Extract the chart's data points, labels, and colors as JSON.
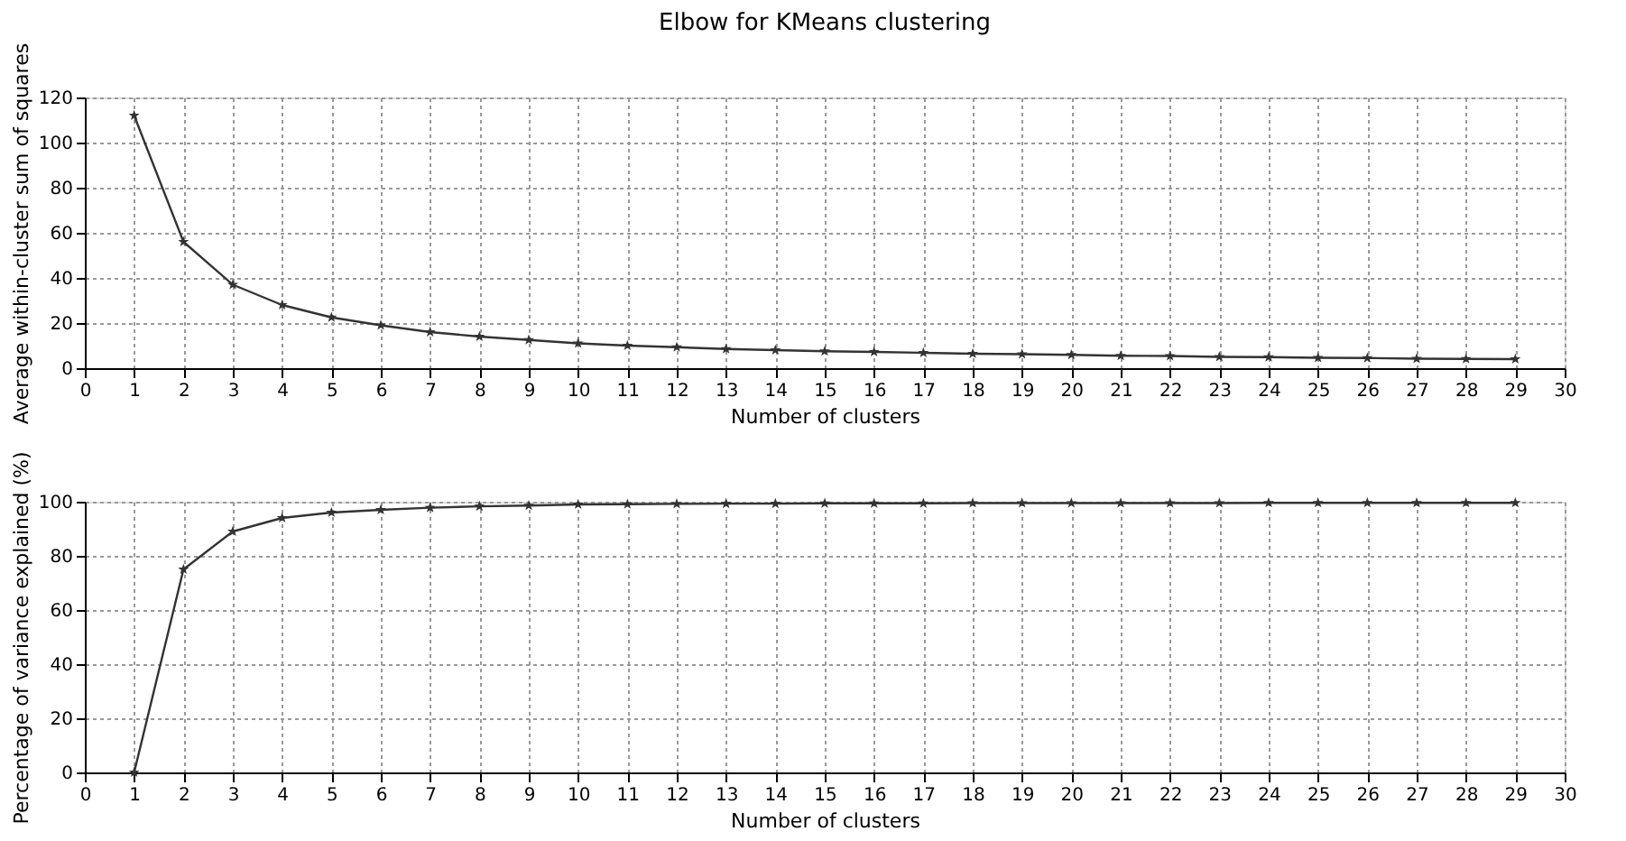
{
  "chart_data": [
    {
      "type": "line",
      "title": "Elbow for KMeans clustering",
      "xlabel": "Number of clusters",
      "ylabel": "Average within-cluster sum of squares",
      "x": [
        1,
        2,
        3,
        4,
        5,
        6,
        7,
        8,
        9,
        10,
        11,
        12,
        13,
        14,
        15,
        16,
        17,
        18,
        19,
        20,
        21,
        22,
        23,
        24,
        25,
        26,
        27,
        28,
        29
      ],
      "series": [
        {
          "color": "#333333",
          "values": [
            112,
            56,
            37,
            28,
            22.5,
            19,
            16,
            14,
            12.5,
            11,
            10,
            9.3,
            8.5,
            8,
            7.5,
            7.2,
            6.8,
            6.4,
            6.2,
            5.9,
            5.5,
            5.4,
            5.0,
            4.9,
            4.6,
            4.5,
            4.2,
            4.1,
            4.0
          ]
        }
      ],
      "xlim": [
        0,
        30
      ],
      "xticks": [
        0,
        1,
        2,
        3,
        4,
        5,
        6,
        7,
        8,
        9,
        10,
        11,
        12,
        13,
        14,
        15,
        16,
        17,
        18,
        19,
        20,
        21,
        22,
        23,
        24,
        25,
        26,
        27,
        28,
        29,
        30
      ],
      "ylim": [
        0,
        120
      ],
      "yticks": [
        0,
        20,
        40,
        60,
        80,
        100,
        120
      ],
      "grid": true,
      "marker": "star",
      "line_style": "solid"
    },
    {
      "type": "line",
      "xlabel": "Number of clusters",
      "ylabel": "Percentage of variance explained (%)",
      "x": [
        1,
        2,
        3,
        4,
        5,
        6,
        7,
        8,
        9,
        10,
        11,
        12,
        13,
        14,
        15,
        16,
        17,
        18,
        19,
        20,
        21,
        22,
        23,
        24,
        25,
        26,
        27,
        28,
        29
      ],
      "series": [
        {
          "color": "#333333",
          "values": [
            0,
            75,
            89,
            94,
            96,
            97,
            97.8,
            98.3,
            98.6,
            99,
            99.1,
            99.2,
            99.3,
            99.3,
            99.4,
            99.4,
            99.4,
            99.5,
            99.5,
            99.5,
            99.5,
            99.5,
            99.5,
            99.6,
            99.6,
            99.6,
            99.6,
            99.6,
            99.6
          ]
        }
      ],
      "xlim": [
        0,
        30
      ],
      "xticks": [
        0,
        1,
        2,
        3,
        4,
        5,
        6,
        7,
        8,
        9,
        10,
        11,
        12,
        13,
        14,
        15,
        16,
        17,
        18,
        19,
        20,
        21,
        22,
        23,
        24,
        25,
        26,
        27,
        28,
        29,
        30
      ],
      "ylim": [
        0,
        100
      ],
      "yticks": [
        0,
        20,
        40,
        60,
        80,
        100
      ],
      "grid": true,
      "marker": "star",
      "line_style": "solid"
    }
  ]
}
